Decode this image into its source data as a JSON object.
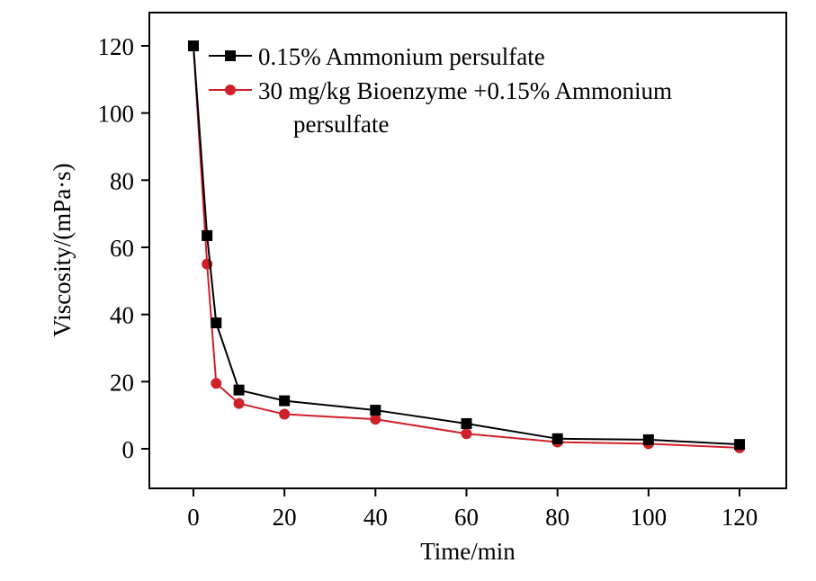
{
  "chart_data": {
    "type": "line",
    "title": "",
    "xlabel": "Time/min",
    "ylabel": "Viscosity/(mPa·s)",
    "xlim": [
      -10,
      130
    ],
    "ylim": [
      -12,
      130
    ],
    "xticks": [
      0,
      20,
      40,
      60,
      80,
      100,
      120
    ],
    "yticks": [
      0,
      20,
      40,
      60,
      80,
      100,
      120
    ],
    "grid": false,
    "legend_position": "top-right",
    "series": [
      {
        "name": "0.15% Ammonium persulfate",
        "color": "#000000",
        "marker": "square",
        "x": [
          0,
          3,
          5,
          10,
          20,
          40,
          60,
          80,
          100,
          120
        ],
        "y": [
          120,
          63.5,
          37.5,
          17.5,
          14.3,
          11.5,
          7.5,
          3.0,
          2.7,
          1.3
        ]
      },
      {
        "name": "30 mg/kg Bioenzyme +0.15% Ammonium persulfate",
        "color": "#d0202a",
        "marker": "circle",
        "x": [
          0,
          3,
          5,
          10,
          20,
          40,
          60,
          80,
          100,
          120
        ],
        "y": [
          120,
          55,
          19.5,
          13.5,
          10.3,
          8.8,
          4.5,
          2.0,
          1.5,
          0.3
        ]
      }
    ]
  }
}
